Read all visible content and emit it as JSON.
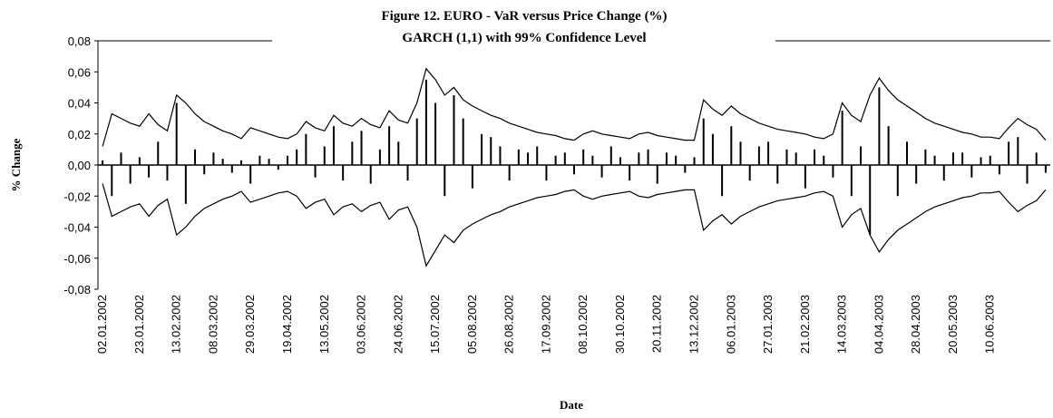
{
  "chart_data": {
    "type": "bar",
    "title": "Figure 12. EURO - VaR versus Price Change (%)",
    "subtitle": "GARCH (1,1) with 99% Confidence Level",
    "x_label": "Date",
    "y_label": "% Change",
    "categories": [
      "02.01.2002",
      null,
      null,
      null,
      "23.01.2002",
      null,
      null,
      null,
      "13.02.2002",
      null,
      null,
      null,
      "08.03.2002",
      null,
      null,
      null,
      "29.03.2002",
      null,
      null,
      null,
      "19.04.2002",
      null,
      null,
      null,
      "13.05.2002",
      null,
      null,
      null,
      "03.06.2002",
      null,
      null,
      null,
      "24.06.2002",
      null,
      null,
      null,
      "15.07.2002",
      null,
      null,
      null,
      "05.08.2002",
      null,
      null,
      null,
      "26.08.2002",
      null,
      null,
      null,
      "17.09.2002",
      null,
      null,
      null,
      "08.10.2002",
      null,
      null,
      null,
      "30.10.2002",
      null,
      null,
      null,
      "20.11.2002",
      null,
      null,
      null,
      "13.12.2002",
      null,
      null,
      null,
      "06.01.2003",
      null,
      null,
      null,
      "27.01.2003",
      null,
      null,
      null,
      "21.02.2003",
      null,
      null,
      null,
      "14.03.2003",
      null,
      null,
      null,
      "04.04.2003",
      null,
      null,
      null,
      "28.04.2003",
      null,
      null,
      null,
      "20.05.2003",
      null,
      null,
      null,
      "10.06.2003",
      null,
      null,
      null,
      null,
      null,
      null
    ],
    "series": [
      {
        "type": "bar",
        "color": "#000000",
        "values": [
          0.003,
          -0.02,
          0.008,
          -0.012,
          0.005,
          -0.008,
          0.015,
          -0.01,
          0.04,
          -0.025,
          0.01,
          -0.006,
          0.008,
          0.004,
          -0.005,
          0.003,
          -0.012,
          0.006,
          0.004,
          -0.003,
          0.006,
          0.01,
          0.02,
          -0.008,
          0.012,
          0.025,
          -0.01,
          0.015,
          0.022,
          -0.012,
          0.01,
          0.025,
          0.015,
          -0.01,
          0.03,
          0.055,
          0.04,
          -0.02,
          0.045,
          0.03,
          -0.015,
          0.02,
          0.018,
          0.012,
          -0.01,
          0.01,
          0.008,
          0.012,
          -0.01,
          0.006,
          0.008,
          -0.006,
          0.01,
          0.006,
          -0.008,
          0.012,
          0.005,
          -0.01,
          0.008,
          0.01,
          -0.012,
          0.008,
          0.006,
          -0.005,
          0.005,
          0.03,
          0.02,
          -0.02,
          0.025,
          0.015,
          -0.01,
          0.012,
          0.015,
          -0.012,
          0.01,
          0.008,
          -0.015,
          0.01,
          0.006,
          -0.008,
          0.035,
          -0.02,
          0.012,
          -0.045,
          0.05,
          0.025,
          -0.02,
          0.015,
          -0.012,
          0.01,
          0.006,
          -0.01,
          0.008,
          0.008,
          -0.008,
          0.005,
          0.006,
          -0.006,
          0.015,
          0.018,
          -0.012,
          0.008,
          -0.005
        ]
      },
      {
        "type": "line",
        "color": "#000000",
        "values": [
          0.012,
          0.033,
          0.03,
          0.027,
          0.025,
          0.033,
          0.026,
          0.022,
          0.045,
          0.04,
          0.033,
          0.028,
          0.025,
          0.022,
          0.02,
          0.017,
          0.024,
          0.022,
          0.02,
          0.018,
          0.017,
          0.02,
          0.028,
          0.024,
          0.022,
          0.032,
          0.027,
          0.025,
          0.03,
          0.026,
          0.024,
          0.035,
          0.029,
          0.027,
          0.04,
          0.062,
          0.055,
          0.045,
          0.05,
          0.042,
          0.038,
          0.035,
          0.032,
          0.03,
          0.027,
          0.025,
          0.023,
          0.021,
          0.02,
          0.019,
          0.017,
          0.016,
          0.02,
          0.022,
          0.02,
          0.019,
          0.018,
          0.017,
          0.02,
          0.021,
          0.019,
          0.018,
          0.017,
          0.016,
          0.016,
          0.042,
          0.036,
          0.032,
          0.038,
          0.033,
          0.03,
          0.027,
          0.025,
          0.023,
          0.022,
          0.021,
          0.02,
          0.018,
          0.017,
          0.02,
          0.04,
          0.032,
          0.028,
          0.045,
          0.056,
          0.048,
          0.042,
          0.038,
          0.034,
          0.03,
          0.027,
          0.025,
          0.023,
          0.021,
          0.02,
          0.018,
          0.018,
          0.017,
          0.024,
          0.03,
          0.026,
          0.023,
          0.016
        ]
      },
      {
        "type": "line",
        "color": "#000000",
        "values": [
          -0.012,
          -0.033,
          -0.03,
          -0.027,
          -0.025,
          -0.033,
          -0.026,
          -0.022,
          -0.045,
          -0.04,
          -0.033,
          -0.028,
          -0.025,
          -0.022,
          -0.02,
          -0.017,
          -0.024,
          -0.022,
          -0.02,
          -0.018,
          -0.017,
          -0.02,
          -0.028,
          -0.024,
          -0.022,
          -0.032,
          -0.027,
          -0.025,
          -0.03,
          -0.026,
          -0.024,
          -0.035,
          -0.029,
          -0.027,
          -0.04,
          -0.065,
          -0.055,
          -0.045,
          -0.05,
          -0.042,
          -0.038,
          -0.035,
          -0.032,
          -0.03,
          -0.027,
          -0.025,
          -0.023,
          -0.021,
          -0.02,
          -0.019,
          -0.017,
          -0.016,
          -0.02,
          -0.022,
          -0.02,
          -0.019,
          -0.018,
          -0.017,
          -0.02,
          -0.021,
          -0.019,
          -0.018,
          -0.017,
          -0.016,
          -0.016,
          -0.042,
          -0.036,
          -0.032,
          -0.038,
          -0.033,
          -0.03,
          -0.027,
          -0.025,
          -0.023,
          -0.022,
          -0.021,
          -0.02,
          -0.018,
          -0.017,
          -0.02,
          -0.04,
          -0.032,
          -0.028,
          -0.045,
          -0.056,
          -0.048,
          -0.042,
          -0.038,
          -0.034,
          -0.03,
          -0.027,
          -0.025,
          -0.023,
          -0.021,
          -0.02,
          -0.018,
          -0.018,
          -0.017,
          -0.024,
          -0.03,
          -0.026,
          -0.023,
          -0.016
        ]
      }
    ],
    "ylim": [
      -0.08,
      0.08
    ],
    "yticks": [
      {
        "value": -0.08,
        "label": "-0,08"
      },
      {
        "value": -0.06,
        "label": "-0,06"
      },
      {
        "value": -0.04,
        "label": "-0,04"
      },
      {
        "value": -0.02,
        "label": "-0,02"
      },
      {
        "value": 0,
        "label": "0,00"
      },
      {
        "value": 0.02,
        "label": "0,02"
      },
      {
        "value": 0.04,
        "label": "0,04"
      },
      {
        "value": 0.06,
        "label": "0,06"
      },
      {
        "value": 0.08,
        "label": "0,08"
      }
    ],
    "grid": false
  }
}
